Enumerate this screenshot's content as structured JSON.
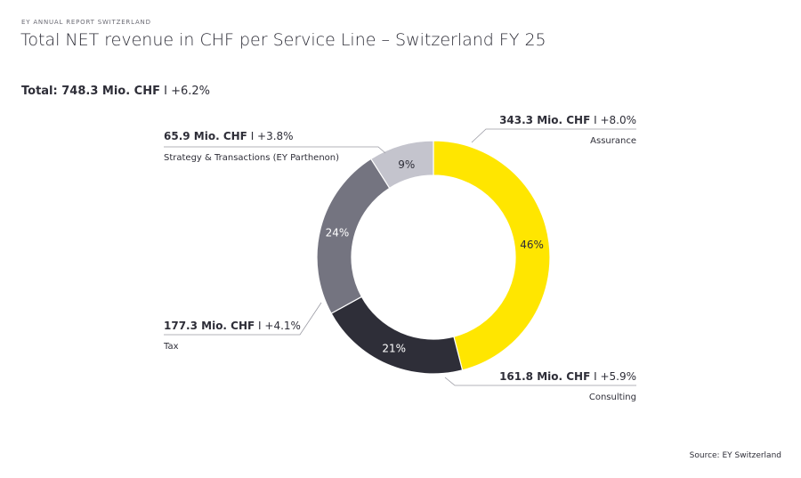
{
  "header": {
    "kicker": "EY ANNUAL REPORT SWITZERLAND",
    "title": "Total NET revenue in CHF per Service Line – Switzerland FY 25",
    "total_label": "Total: 748.3 Mio. CHF",
    "total_growth": "I +6.2%"
  },
  "source": "Source: EY Switzerland",
  "chart_data": {
    "type": "pie",
    "variant": "donut",
    "title": "Total NET revenue in CHF per Service Line – Switzerland FY 25",
    "unit": "Mio. CHF",
    "total": 748.3,
    "total_growth": "+6.2%",
    "slices": [
      {
        "name": "Assurance",
        "value": 343.3,
        "percent": 46,
        "percent_label": "46%",
        "value_label": "343.3 Mio. CHF",
        "growth_label": "I +8.0%",
        "color": "#ffe600"
      },
      {
        "name": "Consulting",
        "value": 161.8,
        "percent": 21,
        "percent_label": "21%",
        "value_label": "161.8 Mio. CHF",
        "growth_label": "I +5.9%",
        "color": "#2e2e38"
      },
      {
        "name": "Tax",
        "value": 177.3,
        "percent": 24,
        "percent_label": "24%",
        "value_label": "177.3 Mio. CHF",
        "growth_label": "I +4.1%",
        "color": "#747480"
      },
      {
        "name": "Strategy & Transactions (EY Parthenon)",
        "value": 65.9,
        "percent": 9,
        "percent_label": "9%",
        "value_label": "65.9 Mio. CHF",
        "growth_label": "I +3.8%",
        "color": "#c4c4cd"
      }
    ],
    "start": "top",
    "direction": "clockwise"
  }
}
